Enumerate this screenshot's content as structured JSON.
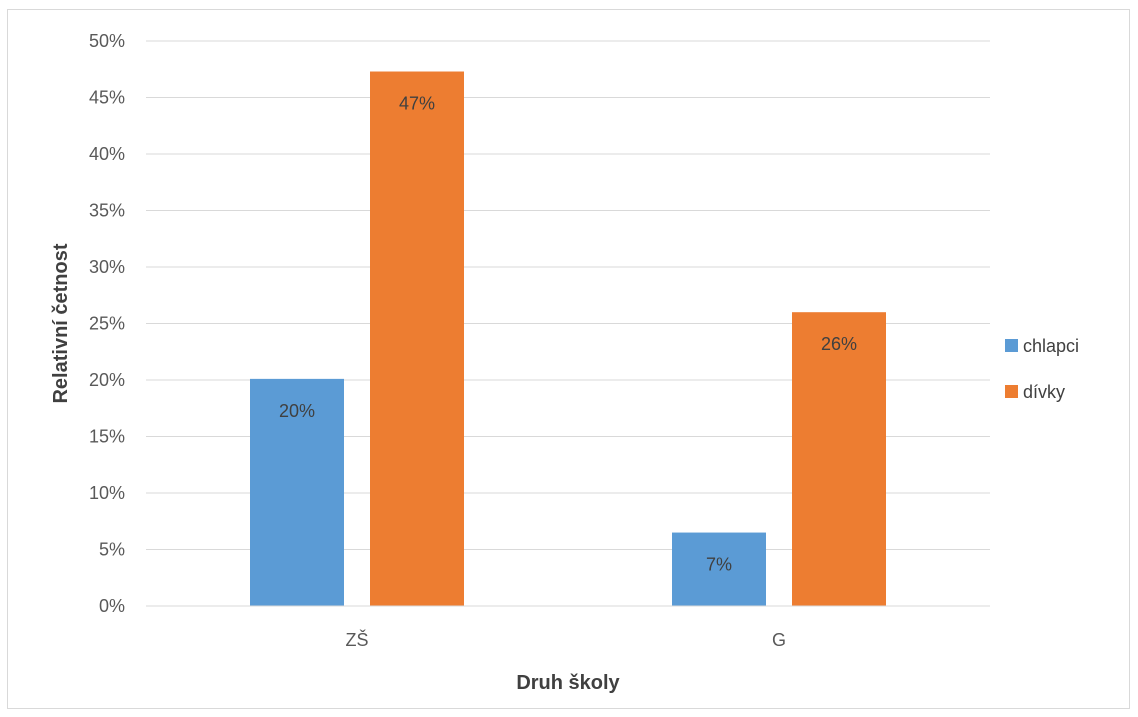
{
  "chart_data": {
    "type": "bar",
    "categories": [
      "ZŠ",
      "G"
    ],
    "series": [
      {
        "name": "chlapci",
        "color": "#5b9bd5",
        "values": [
          20.1,
          6.5
        ],
        "labels": [
          "20%",
          "7%"
        ]
      },
      {
        "name": "dívky",
        "color": "#ed7d31",
        "values": [
          47.3,
          26.0
        ],
        "labels": [
          "47%",
          "26%"
        ]
      }
    ],
    "xlabel": "Druh školy",
    "ylabel": "Relativní četnost",
    "ylim": [
      0,
      50
    ],
    "yticks": [
      "0%",
      "5%",
      "10%",
      "15%",
      "20%",
      "25%",
      "30%",
      "35%",
      "40%",
      "45%",
      "50%"
    ],
    "grid": true,
    "legend_position": "right"
  }
}
